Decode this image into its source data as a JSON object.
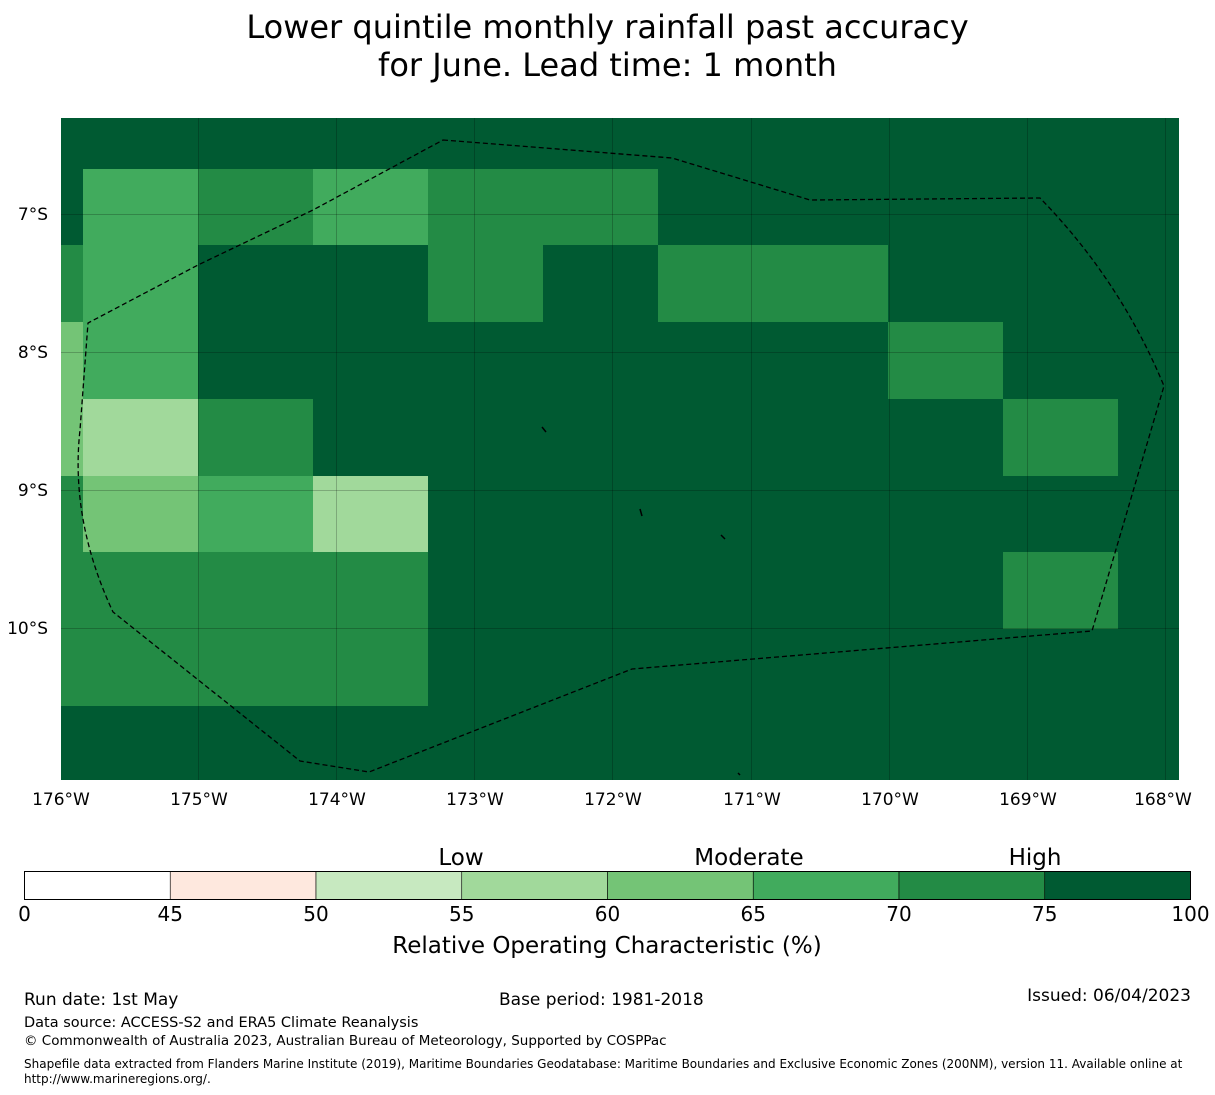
{
  "title": {
    "line1": "Lower quintile monthly rainfall past accuracy",
    "line2": "for June. Lead time: 1 month"
  },
  "map": {
    "x_ticks": [
      "176°W",
      "175°W",
      "174°W",
      "173°W",
      "172°W",
      "171°W",
      "170°W",
      "169°W",
      "168°W"
    ],
    "y_ticks": [
      "7°S",
      "8°S",
      "9°S",
      "10°S"
    ],
    "background_color": "#005a32",
    "boundary_style": "dashed black line",
    "grid": true
  },
  "colorbar": {
    "tick_labels": [
      "0",
      "45",
      "50",
      "55",
      "60",
      "65",
      "70",
      "75",
      "100"
    ],
    "colors": [
      "#ffffff",
      "#fee8de",
      "#c7e9c0",
      "#a1d99b",
      "#74c476",
      "#41ab5d",
      "#238b45",
      "#005a32"
    ],
    "categories": [
      "Low",
      "Moderate",
      "High"
    ],
    "label": "Relative Operating Characteristic (%)"
  },
  "footer": {
    "run_date": "Run date: 1st May",
    "base_period": "Base period: 1981-2018",
    "issued": "Issued: 06/04/2023",
    "data_source": "Data source: ACCESS-S2 and ERA5 Climate Reanalysis",
    "copyright": "© Commonwealth of Australia 2023, Australian Bureau of Meteorology, Supported by COSPPac",
    "shapefile_note": "Shapefile data extracted from Flanders Marine Institute (2019), Maritime Boundaries Geodatabase: Maritime Boundaries and Exclusive Economic Zones (200NM), version 11. Available online at http://www.marineregions.org/."
  }
}
